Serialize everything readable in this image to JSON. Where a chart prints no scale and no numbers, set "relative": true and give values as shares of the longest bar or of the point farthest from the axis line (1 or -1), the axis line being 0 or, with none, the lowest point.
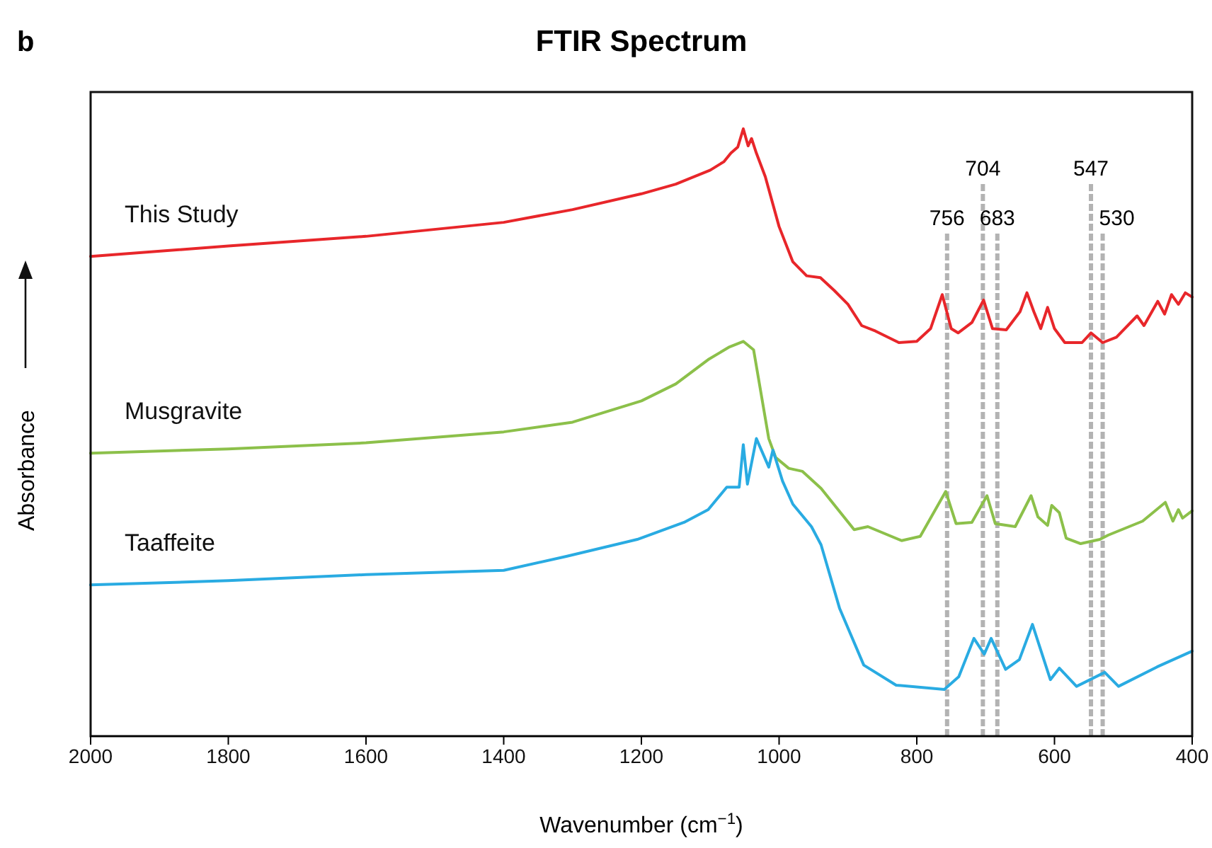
{
  "chart_data": {
    "type": "line",
    "title": "FTIR Spectrum",
    "xlabel": "Wavenumber (cm$^{−1}$)",
    "ylabel": "Absorbance",
    "annotations": [
      "b"
    ],
    "relative": true,
    "xlim": [
      2000,
      400
    ],
    "xticks": [
      2000,
      1800,
      1600,
      1400,
      1200,
      1000,
      800,
      600,
      400
    ],
    "series": [
      {
        "name": "This Study",
        "color": "#e8262a",
        "x": [
          2000,
          1800,
          1600,
          1400,
          1300,
          1200,
          1150,
          1100,
          1080,
          1070,
          1060,
          1052,
          1045,
          1040,
          1033,
          1020,
          1000,
          980,
          960,
          940,
          920,
          900,
          880,
          860,
          826,
          800,
          780,
          763,
          750,
          740,
          720,
          703,
          690,
          670,
          650,
          640,
          630,
          620,
          610,
          600,
          585,
          560,
          547,
          530,
          510,
          480,
          470,
          450,
          440,
          430,
          420,
          410,
          400
        ],
        "values": [
          0.79,
          0.807,
          0.823,
          0.846,
          0.867,
          0.893,
          0.909,
          0.932,
          0.946,
          0.96,
          0.97,
          1,
          0.972,
          0.984,
          0.96,
          0.921,
          0.839,
          0.781,
          0.758,
          0.755,
          0.734,
          0.711,
          0.676,
          0.667,
          0.648,
          0.65,
          0.671,
          0.727,
          0.671,
          0.664,
          0.681,
          0.718,
          0.671,
          0.669,
          0.699,
          0.73,
          0.699,
          0.671,
          0.706,
          0.671,
          0.648,
          0.648,
          0.664,
          0.648,
          0.657,
          0.692,
          0.676,
          0.716,
          0.695,
          0.727,
          0.711,
          0.73,
          0.723
        ]
      },
      {
        "name": "Musgravite",
        "color": "#8cc04a",
        "x": [
          2000,
          1800,
          1600,
          1400,
          1300,
          1200,
          1150,
          1103,
          1072,
          1052,
          1037,
          1015,
          1005,
          986,
          966,
          939,
          891,
          871,
          822,
          795,
          758,
          743,
          720,
          698,
          686,
          657,
          634,
          624,
          610,
          604,
          593,
          583,
          562,
          534,
          522,
          472,
          439,
          428,
          420,
          414,
          400
        ],
        "values": [
          0.466,
          0.473,
          0.483,
          0.501,
          0.517,
          0.552,
          0.58,
          0.62,
          0.641,
          0.65,
          0.636,
          0.49,
          0.459,
          0.441,
          0.436,
          0.408,
          0.34,
          0.345,
          0.322,
          0.329,
          0.403,
          0.35,
          0.352,
          0.396,
          0.35,
          0.345,
          0.396,
          0.361,
          0.347,
          0.38,
          0.368,
          0.326,
          0.317,
          0.324,
          0.331,
          0.354,
          0.385,
          0.354,
          0.373,
          0.359,
          0.371
        ]
      },
      {
        "name": "Taaffeite",
        "color": "#29abe2",
        "x": [
          2000,
          1800,
          1600,
          1400,
          1309,
          1206,
          1138,
          1103,
          1076,
          1058,
          1052,
          1046,
          1033,
          1015,
          1009,
          995,
          980,
          953,
          939,
          912,
          877,
          830,
          760,
          739,
          717,
          702,
          692,
          671,
          651,
          632,
          606,
          593,
          568,
          527,
          507,
          451,
          400
        ],
        "values": [
          0.249,
          0.256,
          0.266,
          0.273,
          0.296,
          0.324,
          0.352,
          0.373,
          0.41,
          0.41,
          0.48,
          0.415,
          0.49,
          0.443,
          0.471,
          0.42,
          0.382,
          0.345,
          0.315,
          0.21,
          0.117,
          0.084,
          0.077,
          0.098,
          0.161,
          0.135,
          0.161,
          0.11,
          0.126,
          0.184,
          0.093,
          0.112,
          0.082,
          0.105,
          0.082,
          0.114,
          0.14
        ]
      }
    ],
    "ref_lines": [
      {
        "axis": "x",
        "value": 756,
        "label": "756",
        "color": "#b3b3b3",
        "line_style": "dashed"
      },
      {
        "axis": "x",
        "value": 704,
        "label": "704",
        "color": "#b3b3b3",
        "line_style": "dashed"
      },
      {
        "axis": "x",
        "value": 683,
        "label": "683",
        "color": "#b3b3b3",
        "line_style": "dashed"
      },
      {
        "axis": "x",
        "value": 547,
        "label": "547",
        "color": "#b3b3b3",
        "line_style": "dashed"
      },
      {
        "axis": "x",
        "value": 530,
        "label": "530",
        "color": "#b3b3b3",
        "line_style": "dashed"
      }
    ]
  }
}
